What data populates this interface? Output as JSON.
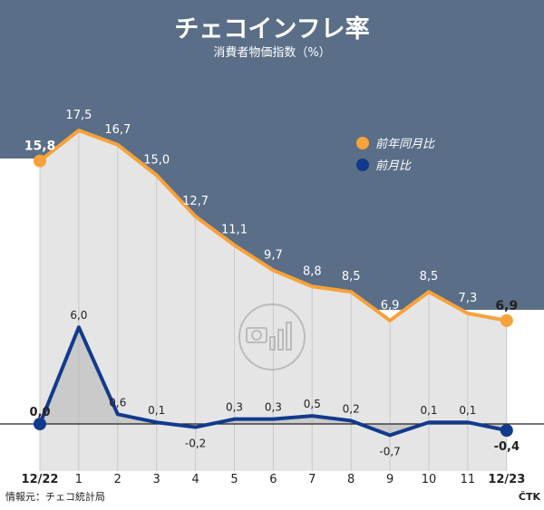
{
  "title": "チェコインフレ率",
  "subtitle": "消費者物価指数（%）",
  "source": "情報元：チェコ統計局",
  "credit": "ČTK",
  "colors": {
    "header_bg": "#5a6e87",
    "plot_bg": "#e5e5e5",
    "annual_line": "#f7a23a",
    "monthly_line": "#123a8c",
    "gridline": "#c9c9c9",
    "zero_line": "#222222",
    "text_dark": "#222222",
    "text_light": "#ffffff"
  },
  "chart_data": {
    "type": "line",
    "categories": [
      "12/22",
      "1",
      "2",
      "3",
      "4",
      "5",
      "6",
      "7",
      "8",
      "9",
      "10",
      "11",
      "12/23"
    ],
    "series": [
      {
        "name": "前年同月比",
        "color": "#f7a23a",
        "values": [
          15.8,
          17.5,
          16.7,
          15.0,
          12.7,
          11.1,
          9.7,
          8.8,
          8.5,
          6.9,
          8.5,
          7.3,
          6.9
        ],
        "labels": [
          "15,8",
          "17,5",
          "16,7",
          "15,0",
          "12,7",
          "11,1",
          "9,7",
          "8,8",
          "8,5",
          "6,9",
          "8,5",
          "7,3",
          "6,9"
        ]
      },
      {
        "name": "前月比",
        "color": "#123a8c",
        "values": [
          0.0,
          6.0,
          0.6,
          0.1,
          -0.2,
          0.3,
          0.3,
          0.5,
          0.2,
          -0.7,
          0.1,
          0.1,
          -0.4
        ],
        "labels": [
          "0,0",
          "6,0",
          "0,6",
          "0,1",
          "-0,2",
          "0,3",
          "0,3",
          "0,5",
          "0,2",
          "-0,7",
          "0,1",
          "0,1",
          "-0,4"
        ]
      }
    ],
    "legend_position": "top-right",
    "grid": "vertical",
    "bold_labels": [
      "12/22",
      "12/23"
    ]
  }
}
